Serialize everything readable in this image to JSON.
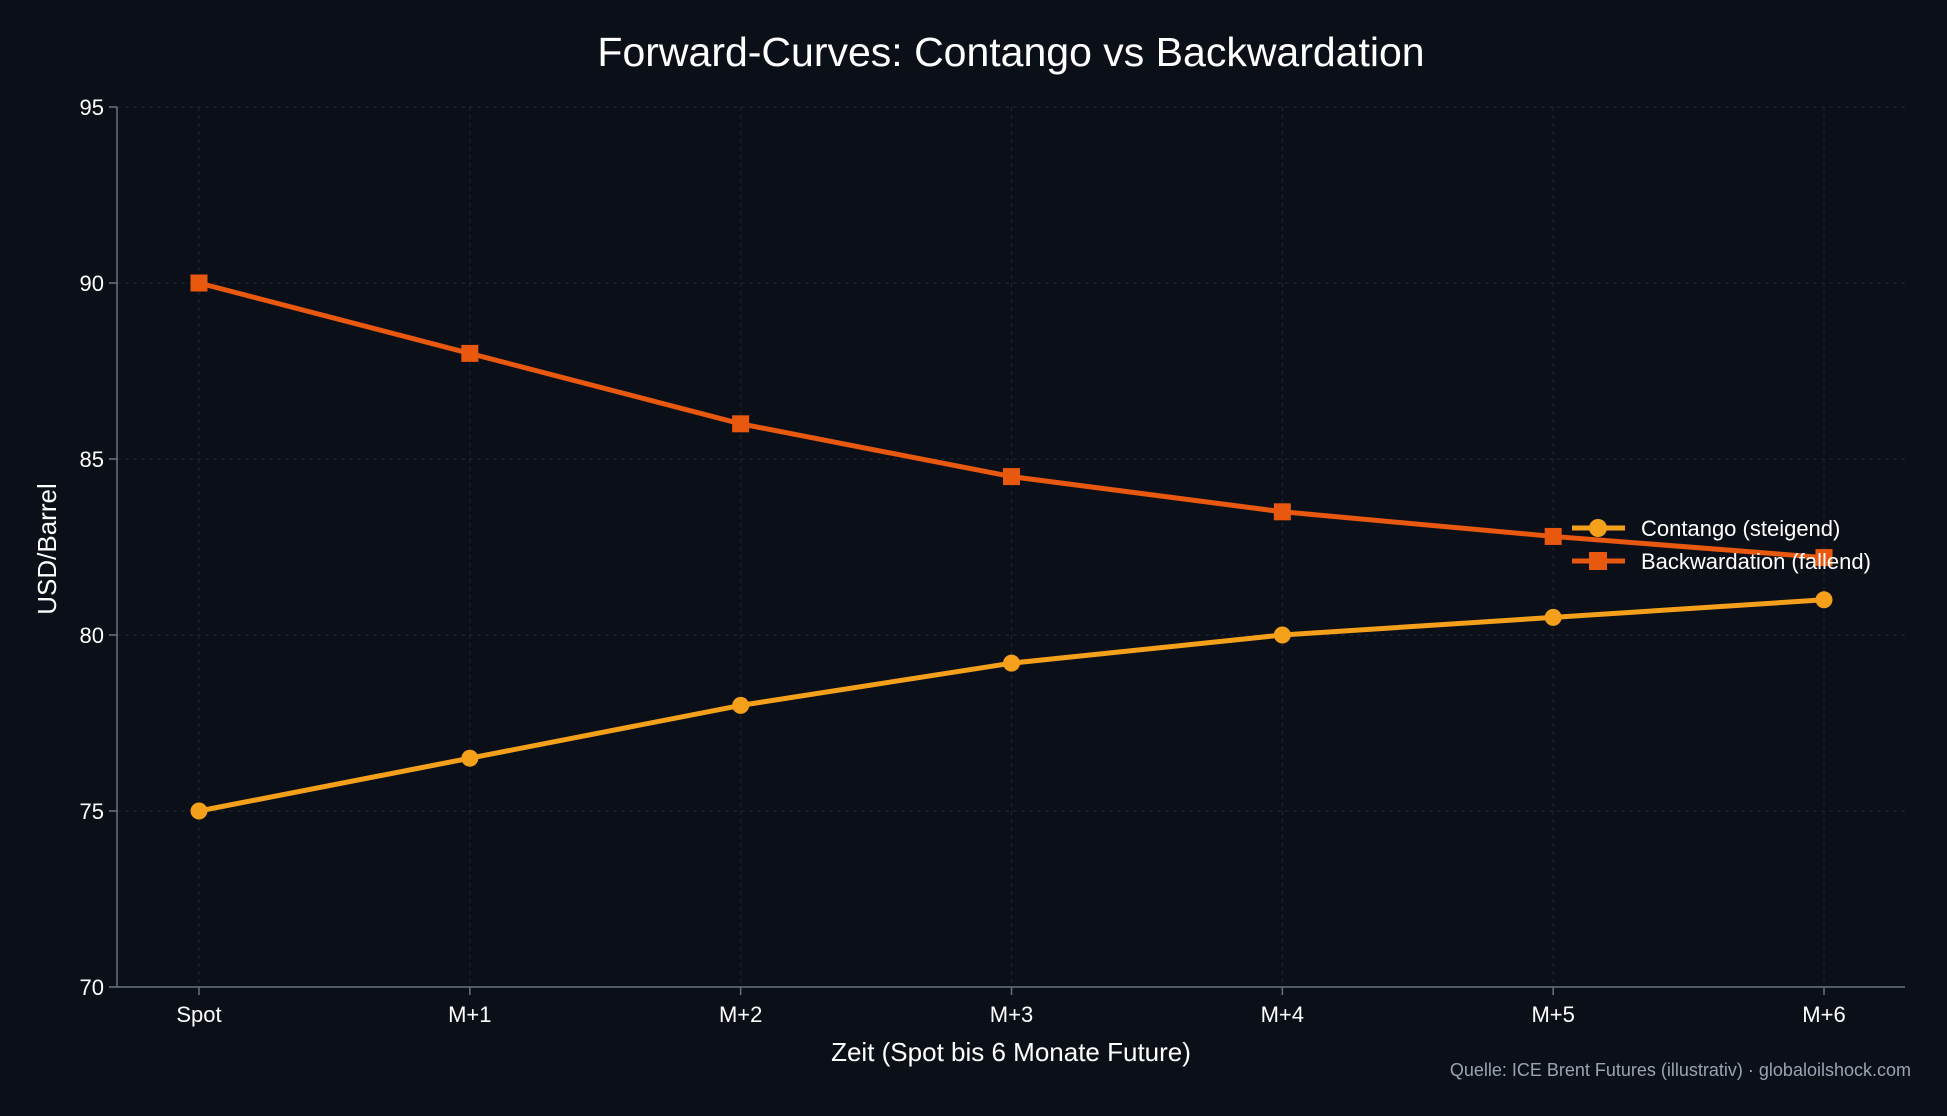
{
  "chart_data": {
    "type": "line",
    "title": "Forward-Curves: Contango vs Backwardation",
    "xlabel": "Zeit (Spot bis 6 Monate Future)",
    "ylabel": "USD/Barrel",
    "categories": [
      "Spot",
      "M+1",
      "M+2",
      "M+3",
      "M+4",
      "M+5",
      "M+6"
    ],
    "ylim": [
      70,
      95
    ],
    "yticks": [
      70,
      75,
      80,
      85,
      90,
      95
    ],
    "grid": true,
    "legend_position": "right",
    "series": [
      {
        "name": "Contango (steigend)",
        "values": [
          75.0,
          76.5,
          78.0,
          79.2,
          80.0,
          80.5,
          81.0
        ],
        "color": "#f5a01a",
        "marker": "circle"
      },
      {
        "name": "Backwardation (fallend)",
        "values": [
          90.0,
          88.0,
          86.0,
          84.5,
          83.5,
          82.8,
          82.2
        ],
        "color": "#e8580f",
        "marker": "square"
      }
    ],
    "source_note": "Quelle: ICE Brent Futures (illustrativ) · globaloilshock.com"
  },
  "colors": {
    "background": "#0b0f18",
    "text": "#ffffff",
    "muted_text": "#9aa3b2",
    "axis": "#6b7280",
    "grid": "#1f2533"
  }
}
